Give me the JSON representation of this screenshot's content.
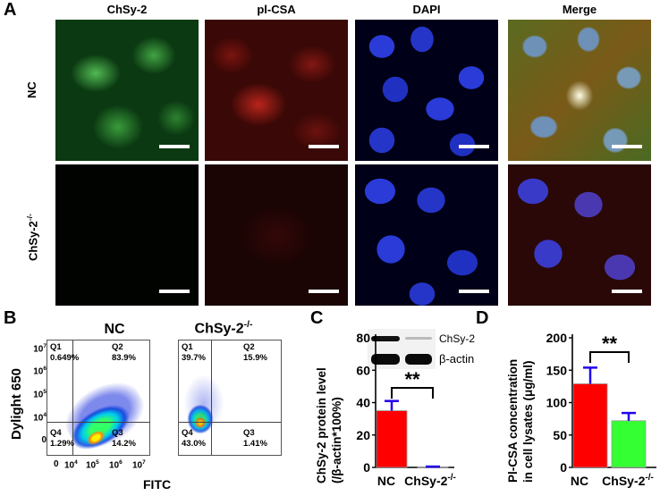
{
  "panel_a": {
    "label": "A",
    "columns": [
      "ChSy-2",
      "pl-CSA",
      "DAPI",
      "Merge"
    ],
    "rows": [
      {
        "label": "NC"
      },
      {
        "label_main": "ChSy-2",
        "label_sup": "-/-"
      }
    ]
  },
  "panel_b": {
    "label": "B",
    "plots": [
      {
        "title": "NC",
        "quadrants": {
          "q1_name": "Q1",
          "q1_value": "0.649%",
          "q2_name": "Q2",
          "q2_value": "83.9%",
          "q3_name": "Q3",
          "q3_value": "14.2%",
          "q4_name": "Q4",
          "q4_value": "1.29%"
        }
      },
      {
        "title_main": "ChSy-2",
        "title_sup": "-/-",
        "quadrants": {
          "q1_name": "Q1",
          "q1_value": "39.7%",
          "q2_name": "Q2",
          "q2_value": "15.9%",
          "q3_name": "Q3",
          "q3_value": "1.41%",
          "q4_name": "Q4",
          "q4_value": "43.0%"
        }
      }
    ],
    "ylabel": "Dylight 650",
    "xlabel": "FITC",
    "y_ticks": [
      {
        "base": "10",
        "exp": "7"
      },
      {
        "base": "10",
        "exp": "6"
      },
      {
        "base": "10",
        "exp": "5"
      },
      {
        "base": "10",
        "exp": "4"
      },
      {
        "base": "0",
        "exp": ""
      }
    ],
    "x_ticks": [
      {
        "base": "0",
        "exp": ""
      },
      {
        "base": "10",
        "exp": "4"
      },
      {
        "base": "10",
        "exp": "5"
      },
      {
        "base": "10",
        "exp": "6"
      },
      {
        "base": "10",
        "exp": "7"
      }
    ]
  },
  "chart_data": [
    {
      "type": "bar",
      "panel": "C",
      "label": "C",
      "categories": [
        "NC",
        "ChSy-2-/-"
      ],
      "cat_labels": [
        {
          "main": "NC",
          "sup": ""
        },
        {
          "main": "ChSy-2",
          "sup": "-/-"
        }
      ],
      "values": [
        35,
        0.3
      ],
      "errors": [
        6,
        0.2
      ],
      "ylim": [
        0,
        80
      ],
      "yticks": [
        0,
        20,
        40,
        60,
        80
      ],
      "ylabel": "ChSy-2 protein level",
      "ylabel2": "(/β-actin*100%)",
      "significance": "**",
      "blot_labels": [
        "ChSy-2",
        "β-actin"
      ],
      "colors": [
        "#ff0000",
        "#7f007f"
      ]
    },
    {
      "type": "bar",
      "panel": "D",
      "label": "D",
      "categories": [
        "NC",
        "ChSy-2-/-"
      ],
      "cat_labels": [
        {
          "main": "NC",
          "sup": ""
        },
        {
          "main": "ChSy-2",
          "sup": "-/-"
        }
      ],
      "values": [
        129,
        72
      ],
      "errors": [
        25,
        12
      ],
      "ylim": [
        0,
        200
      ],
      "yticks": [
        0,
        50,
        100,
        150,
        200
      ],
      "ylabel": "Pl-CSA concentration",
      "ylabel2": "in cell lysates (μg/ml)",
      "significance": "**",
      "colors": [
        "#ff0000",
        "#33ff33"
      ]
    }
  ],
  "colors": {
    "error_bar": "#2200ee",
    "bar_edge": "#999999"
  }
}
